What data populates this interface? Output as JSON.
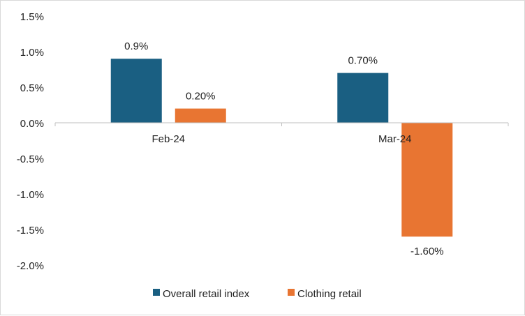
{
  "chart_data": {
    "type": "bar",
    "title": "",
    "xlabel": "",
    "ylabel": "",
    "categories": [
      "Feb-24",
      "Mar-24"
    ],
    "series": [
      {
        "name": "Overall retail index",
        "values": [
          0.9,
          0.7
        ],
        "labels": [
          "0.9%",
          "0.70%"
        ],
        "color": "#1a5f82"
      },
      {
        "name": "Clothing retail",
        "values": [
          0.2,
          -1.6
        ],
        "labels": [
          "0.20%",
          "-1.60%"
        ],
        "color": "#e87532"
      }
    ],
    "ylim": [
      -2.0,
      1.5
    ],
    "yticks": [
      1.5,
      1.0,
      0.5,
      0.0,
      -0.5,
      -1.0,
      -1.5,
      -2.0
    ],
    "ytick_labels": [
      "1.5%",
      "1.0%",
      "0.5%",
      "0.0%",
      "-0.5%",
      "-1.0%",
      "-1.5%",
      "-2.0%"
    ],
    "grid": false,
    "legend_position": "bottom"
  }
}
